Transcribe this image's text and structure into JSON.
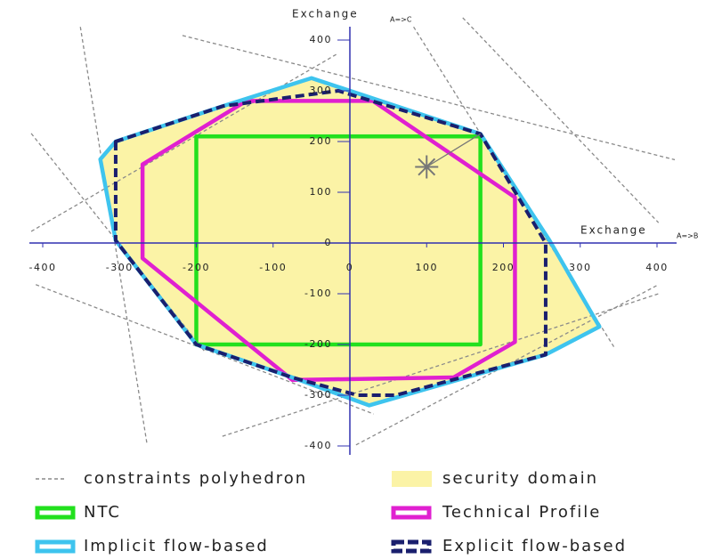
{
  "chart_data": {
    "type": "polygon",
    "x_label": "Exchange",
    "x_label_sub": "A=>B",
    "y_label": "Exchange",
    "y_label_sub": "A=>C",
    "xlim": [
      -400,
      400
    ],
    "ylim": [
      -400,
      400
    ],
    "xticks": [
      -400,
      -300,
      -200,
      -100,
      0,
      100,
      200,
      300,
      400
    ],
    "yticks": [
      -400,
      -300,
      -200,
      -100,
      0,
      100,
      200,
      300,
      400
    ],
    "series": [
      {
        "name": "constraints polyhedron",
        "color": "#8a8a8a",
        "style": "dashed-line",
        "segments": [
          {
            "x": [
              -351,
              -264
            ],
            "y": [
              426,
              -398
            ]
          },
          {
            "x": [
              -415,
              -189
            ],
            "y": [
              216,
              -214
            ]
          },
          {
            "x": [
              -415,
              -15
            ],
            "y": [
              23,
              374
            ]
          },
          {
            "x": [
              -409,
              31
            ],
            "y": [
              -82,
              -337
            ]
          },
          {
            "x": [
              -218,
              426
            ],
            "y": [
              409,
              163
            ]
          },
          {
            "x": [
              83,
              344
            ],
            "y": [
              426,
              -205
            ]
          },
          {
            "x": [
              147,
              402
            ],
            "y": [
              444,
              40
            ]
          },
          {
            "x": [
              -166,
              402
            ],
            "y": [
              -381,
              -100
            ]
          },
          {
            "x": [
              8,
              402
            ],
            "y": [
              -398,
              -82
            ]
          }
        ]
      },
      {
        "name": "security domain",
        "color": "#fbf3a6",
        "style": "fill",
        "x": [
          -50,
          170,
          260,
          325,
          255,
          25,
          -75,
          -200,
          -305,
          -325,
          -305,
          -165
        ],
        "y": [
          325,
          215,
          5,
          -165,
          -220,
          -320,
          -265,
          -200,
          5,
          165,
          200,
          270
        ]
      },
      {
        "name": "NTC",
        "color": "#22e01e",
        "style": "outline",
        "x": [
          -200,
          170,
          170,
          -200
        ],
        "y": [
          210,
          210,
          -200,
          -200
        ]
      },
      {
        "name": "Technical Profile",
        "color": "#e020d0",
        "style": "outline",
        "x": [
          -270,
          -270,
          -75,
          135,
          215,
          215,
          30,
          -135
        ],
        "y": [
          155,
          -30,
          -270,
          -265,
          -195,
          90,
          280,
          280
        ]
      },
      {
        "name": "Implicit flow-based",
        "color": "#3ec4ee",
        "style": "outline",
        "x": [
          -50,
          170,
          260,
          325,
          255,
          25,
          -75,
          -200,
          -305,
          -325,
          -305,
          -165
        ],
        "y": [
          325,
          215,
          5,
          -165,
          -220,
          -320,
          -265,
          -200,
          5,
          165,
          200,
          270
        ]
      },
      {
        "name": "Explicit flow-based",
        "color": "#1a1f6e",
        "style": "dashed-outline",
        "x": [
          -305,
          -305,
          -200,
          -75,
          10,
          60,
          255,
          255,
          170,
          -15,
          -165
        ],
        "y": [
          200,
          5,
          -200,
          -265,
          -300,
          -300,
          -220,
          0,
          215,
          300,
          270
        ]
      }
    ],
    "point": {
      "x": 100,
      "y": 150,
      "color": "#777777"
    }
  }
}
